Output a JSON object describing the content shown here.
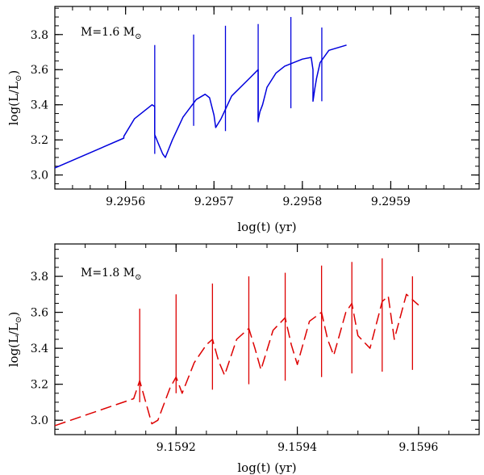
{
  "chart_data": [
    {
      "type": "line",
      "name": "top",
      "title": "",
      "annotation": {
        "text": "M=1.6 M",
        "sun": "⊙"
      },
      "xlabel": "log(t) (yr)",
      "ylabel_main": "log(L/L",
      "ylabel_sub": "⊙",
      "ylabel_close": ")",
      "xlim": [
        9.29552,
        9.296
      ],
      "ylim": [
        2.92,
        3.96
      ],
      "xticks": [
        9.2956,
        9.2957,
        9.2958,
        9.2959
      ],
      "xtick_labels": [
        "9.2956",
        "9.2957",
        "9.2958",
        "9.2959"
      ],
      "xminor_step": 2e-05,
      "yticks": [
        3.0,
        3.2,
        3.4,
        3.6,
        3.8
      ],
      "ytick_labels": [
        "3.0",
        "3.2",
        "3.4",
        "3.6",
        "3.8"
      ],
      "yminor_step": 0.05,
      "color": "#0000dd",
      "dash": "",
      "series": [
        {
          "name": "M=1.6",
          "x": [
            9.29552,
            9.295598,
            9.295598,
            9.29561,
            9.29563,
            9.295633,
            9.295633,
            9.295637,
            9.295642,
            9.295645,
            9.295653,
            9.295665,
            9.29568,
            9.29569,
            9.295695,
            9.2957,
            9.295702,
            9.295708,
            9.29572,
            9.29574,
            9.29575,
            9.29575,
            9.295752,
            9.295755,
            9.29576,
            9.29577,
            9.29578,
            9.2958,
            9.29581,
            9.295812,
            9.295812,
            9.295814,
            9.295816,
            9.29582,
            9.29583,
            9.29585
          ],
          "y": [
            3.04,
            3.21,
            3.22,
            3.32,
            3.4,
            3.39,
            3.23,
            3.18,
            3.12,
            3.1,
            3.2,
            3.33,
            3.43,
            3.46,
            3.44,
            3.34,
            3.27,
            3.32,
            3.45,
            3.55,
            3.6,
            3.31,
            3.36,
            3.4,
            3.5,
            3.58,
            3.62,
            3.66,
            3.67,
            3.6,
            3.42,
            3.49,
            3.55,
            3.64,
            3.71,
            3.74
          ]
        },
        {
          "name": "spikes",
          "segments": [
            [
              [
                9.295633,
                3.12
              ],
              [
                9.295633,
                3.74
              ]
            ],
            [
              [
                9.295677,
                3.28
              ],
              [
                9.295677,
                3.8
              ]
            ],
            [
              [
                9.295713,
                3.25
              ],
              [
                9.295713,
                3.85
              ]
            ],
            [
              [
                9.29575,
                3.3
              ],
              [
                9.29575,
                3.86
              ]
            ],
            [
              [
                9.295787,
                3.38
              ],
              [
                9.295787,
                3.9
              ]
            ],
            [
              [
                9.295822,
                3.42
              ],
              [
                9.295822,
                3.84
              ]
            ]
          ]
        }
      ]
    },
    {
      "type": "line",
      "name": "bottom",
      "title": "",
      "annotation": {
        "text": "M=1.8 M",
        "sun": "⊙"
      },
      "xlabel": "log(t) (yr)",
      "ylabel_main": "log(L/L",
      "ylabel_sub": "⊙",
      "ylabel_close": ")",
      "xlim": [
        9.159,
        9.1597
      ],
      "ylim": [
        2.92,
        3.98
      ],
      "xticks": [
        9.1592,
        9.1594,
        9.1596
      ],
      "xtick_labels": [
        "9.1592",
        "9.1594",
        "9.1596"
      ],
      "xminor_step": 5e-05,
      "yticks": [
        3.0,
        3.2,
        3.4,
        3.6,
        3.8
      ],
      "ytick_labels": [
        "3.0",
        "3.2",
        "3.4",
        "3.6",
        "3.8"
      ],
      "yminor_step": 0.05,
      "color": "#dd0000",
      "dash": "14,6",
      "series": [
        {
          "name": "M=1.8",
          "x": [
            9.159,
            9.15913,
            9.15914,
            9.15915,
            9.15916,
            9.15917,
            9.15919,
            9.1592,
            9.15921,
            9.15923,
            9.15925,
            9.15926,
            9.15927,
            9.15928,
            9.1593,
            9.15932,
            9.15933,
            9.15934,
            9.15936,
            9.15938,
            9.15939,
            9.1594,
            9.15942,
            9.15944,
            9.15945,
            9.15946,
            9.15948,
            9.15949,
            9.1595,
            9.15952,
            9.15954,
            9.15955,
            9.15956,
            9.15958,
            9.1596
          ],
          "y": [
            2.97,
            3.12,
            3.22,
            3.1,
            2.98,
            3.0,
            3.18,
            3.24,
            3.15,
            3.32,
            3.42,
            3.45,
            3.33,
            3.25,
            3.45,
            3.51,
            3.4,
            3.28,
            3.5,
            3.57,
            3.42,
            3.31,
            3.55,
            3.6,
            3.45,
            3.36,
            3.6,
            3.65,
            3.47,
            3.4,
            3.66,
            3.69,
            3.45,
            3.7,
            3.64
          ]
        },
        {
          "name": "spikes",
          "segments": [
            [
              [
                9.15914,
                3.1
              ],
              [
                9.15914,
                3.62
              ]
            ],
            [
              [
                9.1592,
                3.15
              ],
              [
                9.1592,
                3.7
              ]
            ],
            [
              [
                9.15926,
                3.17
              ],
              [
                9.15926,
                3.76
              ]
            ],
            [
              [
                9.15932,
                3.2
              ],
              [
                9.15932,
                3.8
              ]
            ],
            [
              [
                9.15938,
                3.22
              ],
              [
                9.15938,
                3.82
              ]
            ],
            [
              [
                9.15944,
                3.24
              ],
              [
                9.15944,
                3.86
              ]
            ],
            [
              [
                9.15949,
                3.26
              ],
              [
                9.15949,
                3.88
              ]
            ],
            [
              [
                9.15954,
                3.27
              ],
              [
                9.15954,
                3.9
              ]
            ],
            [
              [
                9.15959,
                3.28
              ],
              [
                9.15959,
                3.8
              ]
            ]
          ]
        }
      ]
    }
  ]
}
